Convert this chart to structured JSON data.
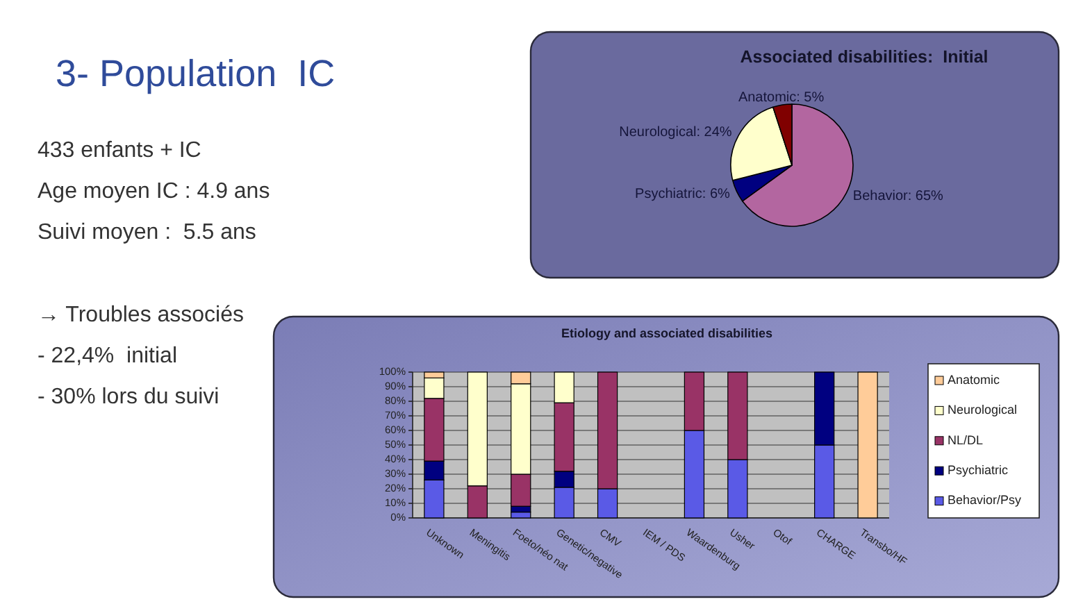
{
  "chart_data": [
    {
      "type": "other",
      "title": "3- Population  IC",
      "annotations": [
        "433 enfants + IC",
        "Age moyen IC : 4.9 ans",
        "Suivi moyen :  5.5 ans",
        "→ Troubles associés",
        "- 22,4%  initial",
        "- 30% lors du suivi"
      ]
    },
    {
      "type": "pie",
      "title": "Associated disabilities:  Initial",
      "categories": [
        "Behavior",
        "Psychiatric",
        "Neurological",
        "Anatomic"
      ],
      "values": [
        65,
        6,
        24,
        5
      ],
      "value_labels": [
        "65%",
        "6%",
        "24%",
        "5%"
      ],
      "colors": [
        "#b366a0",
        "#000080",
        "#ffffcc",
        "#800000"
      ]
    },
    {
      "type": "bar",
      "title": "Etiology and associated disabilities",
      "categories": [
        "Unknown",
        "Meningitis",
        "Foeto/néo nat",
        "Genetic/negative",
        "CMV",
        "IEM / PDS",
        "Waardenburg",
        "Usher",
        "Otof",
        "CHARGE",
        "Transbo/HF"
      ],
      "stacked": true,
      "series": [
        {
          "name": "Behavior/Psy",
          "color": "#5a5ae6",
          "values": [
            26,
            null,
            4,
            21,
            20,
            null,
            60,
            40,
            null,
            50,
            null
          ]
        },
        {
          "name": "Psychiatric",
          "color": "#000080",
          "values": [
            13,
            null,
            4,
            11,
            null,
            null,
            null,
            null,
            null,
            50,
            null
          ]
        },
        {
          "name": "NL/DL",
          "color": "#993366",
          "values": [
            43,
            22,
            22,
            47,
            80,
            null,
            40,
            60,
            null,
            null,
            null
          ]
        },
        {
          "name": "Neurological",
          "color": "#ffffcc",
          "values": [
            14,
            78,
            62,
            21,
            null,
            null,
            null,
            null,
            null,
            null,
            null
          ]
        },
        {
          "name": "Anatomic",
          "color": "#ffcc99",
          "values": [
            4,
            null,
            8,
            null,
            null,
            null,
            null,
            null,
            null,
            null,
            100
          ]
        }
      ],
      "ylim": [
        0,
        100
      ],
      "yticks": [
        {
          "value": 0,
          "label": "0%"
        },
        {
          "value": 10,
          "label": "10%"
        },
        {
          "value": 20,
          "label": "20%"
        },
        {
          "value": 30,
          "label": "30%"
        },
        {
          "value": 40,
          "label": "40%"
        },
        {
          "value": 50,
          "label": "50%"
        },
        {
          "value": 60,
          "label": "60%"
        },
        {
          "value": 70,
          "label": "70%"
        },
        {
          "value": 80,
          "label": "80%"
        },
        {
          "value": 90,
          "label": "90%"
        },
        {
          "value": 100,
          "label": "100%"
        }
      ],
      "grid": "y",
      "legend": "right"
    }
  ]
}
